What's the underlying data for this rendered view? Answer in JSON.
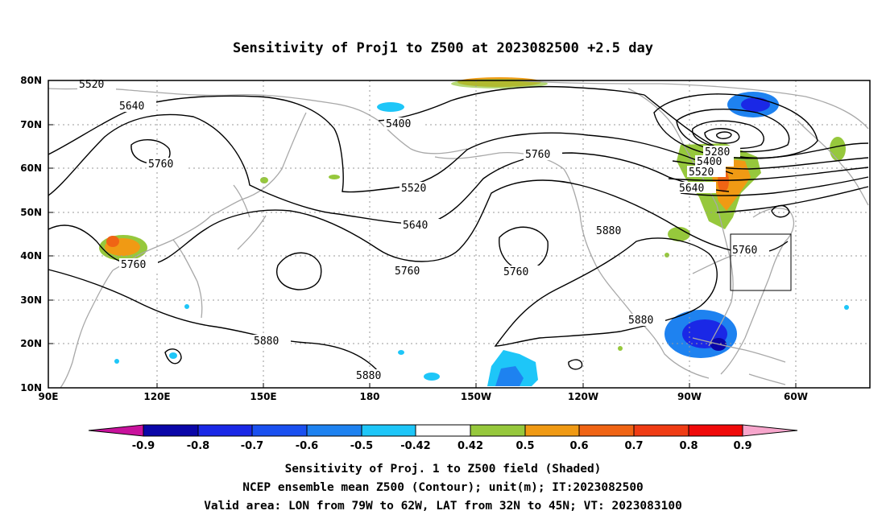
{
  "title": "Sensitivity of Proj1 to Z500 at 2023082500 +2.5 day",
  "captions": {
    "line1": "Sensitivity of Proj. 1 to Z500 field (Shaded)",
    "line2": "NCEP ensemble mean Z500 (Contour); unit(m); IT:2023082500",
    "line3": "Valid area: LON from 79W to 62W, LAT from 32N to 45N; VT: 2023083100"
  },
  "map": {
    "lon_labels": [
      "90E",
      "120E",
      "150E",
      "180",
      "150W",
      "120W",
      "90W",
      "60W"
    ],
    "lat_labels": [
      "80N",
      "70N",
      "60N",
      "50N",
      "40N",
      "30N",
      "20N",
      "10N"
    ],
    "contour_labels": [
      "5520",
      "5640",
      "5760",
      "5400",
      "5520",
      "5640",
      "5760",
      "5880",
      "5760",
      "5760",
      "5760",
      "5880",
      "5880",
      "5880",
      "5280",
      "5400",
      "5520",
      "5640",
      "5760"
    ],
    "valid_area": {
      "lon_range": [
        "79W",
        "62W"
      ],
      "lat_range": [
        "32N",
        "45N"
      ]
    }
  },
  "colorbar": {
    "labels": [
      "-0.9",
      "-0.8",
      "-0.7",
      "-0.6",
      "-0.5",
      "-0.42",
      "0.42",
      "0.5",
      "0.6",
      "0.7",
      "0.8",
      "0.9"
    ],
    "colors": [
      "#c8129c",
      "#0a06a8",
      "#1a28e6",
      "#1a50f0",
      "#1e82f0",
      "#1ec6f8",
      "#ffffff",
      "#96c83c",
      "#f09a14",
      "#f06414",
      "#f03c14",
      "#f00a0a",
      "#f7a6cc"
    ]
  }
}
